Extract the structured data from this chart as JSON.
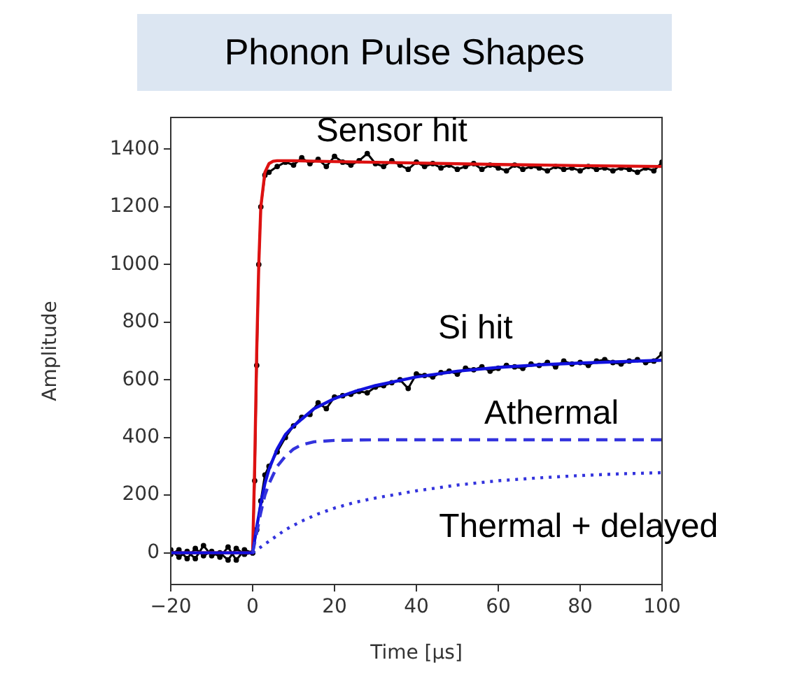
{
  "chart_data": {
    "type": "line",
    "title": "Phonon Pulse Shapes",
    "xlabel": "Time [μs]",
    "ylabel": "Amplitude",
    "xlim": [
      -20,
      100
    ],
    "xticks": [
      -20,
      0,
      20,
      40,
      60,
      80,
      100
    ],
    "ylim": [
      -110,
      1510
    ],
    "yticks": [
      0,
      200,
      400,
      600,
      800,
      1000,
      1200,
      1400
    ],
    "grid": false,
    "legend": false,
    "series": [
      {
        "color": "#000000",
        "marker": "circle",
        "line_style": "solid",
        "x": [
          -20,
          -18,
          -16,
          -14,
          -12,
          -10,
          -8,
          -6,
          -4,
          -2,
          0,
          0.5,
          1,
          1.5,
          2,
          3,
          4,
          6,
          8,
          10,
          12,
          14,
          16,
          18,
          20,
          22,
          24,
          26,
          28,
          30,
          32,
          34,
          36,
          38,
          40,
          42,
          44,
          46,
          48,
          50,
          52,
          54,
          56,
          58,
          60,
          62,
          64,
          66,
          68,
          70,
          72,
          74,
          76,
          78,
          80,
          82,
          84,
          86,
          88,
          90,
          92,
          94,
          96,
          98,
          100
        ],
        "values": [
          10,
          -15,
          5,
          -20,
          25,
          -10,
          0,
          -25,
          15,
          -5,
          0,
          250,
          650,
          1000,
          1200,
          1310,
          1320,
          1340,
          1355,
          1345,
          1370,
          1350,
          1365,
          1340,
          1375,
          1355,
          1345,
          1360,
          1385,
          1350,
          1340,
          1360,
          1345,
          1330,
          1355,
          1340,
          1350,
          1335,
          1345,
          1330,
          1340,
          1350,
          1330,
          1345,
          1335,
          1325,
          1345,
          1330,
          1340,
          1335,
          1325,
          1340,
          1330,
          1335,
          1325,
          1340,
          1330,
          1335,
          1325,
          1335,
          1330,
          1320,
          1335,
          1325,
          1355
        ]
      },
      {
        "color": "#000000",
        "marker": "circle",
        "line_style": "solid",
        "x": [
          -20,
          -18,
          -16,
          -14,
          -12,
          -10,
          -8,
          -6,
          -4,
          -2,
          0,
          1,
          2,
          3,
          4,
          6,
          8,
          10,
          12,
          14,
          16,
          18,
          20,
          22,
          24,
          26,
          28,
          30,
          32,
          34,
          36,
          38,
          40,
          42,
          44,
          46,
          48,
          50,
          52,
          54,
          56,
          58,
          60,
          62,
          64,
          66,
          68,
          70,
          72,
          74,
          76,
          78,
          80,
          82,
          84,
          86,
          88,
          90,
          92,
          94,
          96,
          98,
          100
        ],
        "values": [
          -5,
          10,
          -20,
          15,
          -10,
          5,
          -15,
          20,
          -25,
          10,
          0,
          80,
          180,
          270,
          300,
          350,
          400,
          440,
          470,
          480,
          520,
          500,
          540,
          545,
          550,
          560,
          555,
          575,
          580,
          590,
          600,
          570,
          620,
          615,
          610,
          625,
          630,
          620,
          640,
          635,
          645,
          630,
          640,
          650,
          645,
          640,
          655,
          650,
          660,
          645,
          665,
          655,
          660,
          650,
          665,
          670,
          660,
          655,
          665,
          670,
          660,
          665,
          690
        ]
      },
      {
        "name": "Sensor hit",
        "color": "#dd1111",
        "marker": "none",
        "line_style": "solid",
        "x": [
          -20,
          0,
          0.5,
          1,
          1.5,
          2,
          3,
          4,
          5,
          6,
          10,
          20,
          40,
          60,
          80,
          100
        ],
        "values": [
          0,
          0,
          300,
          700,
          1000,
          1200,
          1320,
          1350,
          1358,
          1360,
          1360,
          1357,
          1352,
          1347,
          1343,
          1340
        ]
      },
      {
        "name": "Si hit",
        "color": "#1111dd",
        "marker": "none",
        "line_style": "solid",
        "x": [
          -20,
          0,
          1,
          2,
          3,
          4,
          6,
          8,
          10,
          15,
          20,
          25,
          30,
          40,
          50,
          60,
          70,
          80,
          90,
          100
        ],
        "values": [
          0,
          0,
          90,
          170,
          240,
          290,
          360,
          410,
          440,
          500,
          535,
          560,
          580,
          610,
          630,
          643,
          652,
          658,
          663,
          668
        ]
      },
      {
        "name": "Athermal",
        "color": "#3333dd",
        "marker": "none",
        "line_style": "dashed",
        "x": [
          0,
          1,
          2,
          3,
          4,
          6,
          8,
          10,
          12,
          15,
          20,
          30,
          50,
          100
        ],
        "values": [
          0,
          70,
          140,
          200,
          240,
          300,
          335,
          360,
          375,
          385,
          390,
          392,
          392,
          392
        ]
      },
      {
        "name": "Thermal + delayed",
        "color": "#3333dd",
        "marker": "none",
        "line_style": "dotted",
        "x": [
          0,
          2,
          5,
          8,
          12,
          16,
          20,
          25,
          30,
          40,
          50,
          60,
          70,
          80,
          90,
          100
        ],
        "values": [
          0,
          20,
          50,
          80,
          110,
          135,
          155,
          175,
          190,
          215,
          235,
          250,
          260,
          268,
          274,
          278
        ]
      }
    ]
  }
}
